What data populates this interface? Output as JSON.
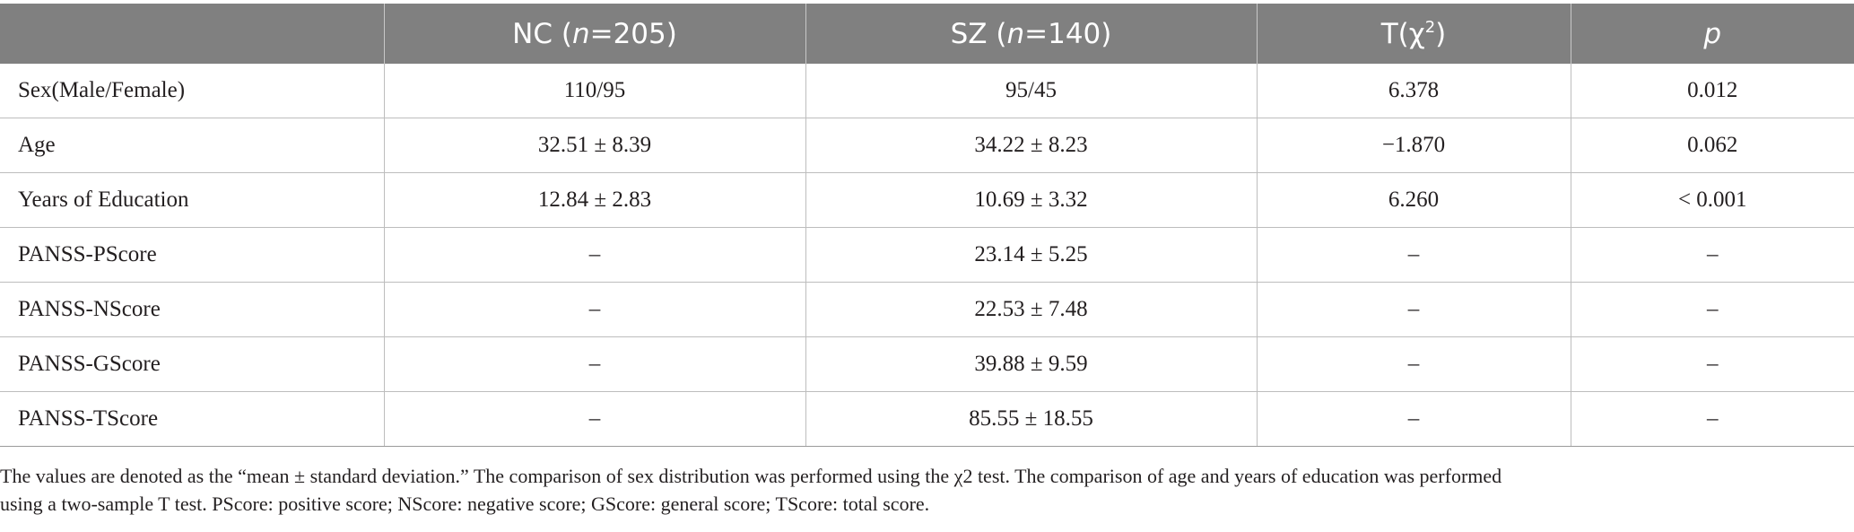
{
  "table": {
    "headers": {
      "col0": "",
      "nc_prefix": "NC (",
      "nc_n": "n",
      "nc_suffix": "=205)",
      "sz_prefix": "SZ (",
      "sz_n": "n",
      "sz_suffix": "=140)",
      "t_base": "T(χ",
      "t_sup": "2",
      "t_close": ")",
      "p": "p"
    },
    "rows": [
      {
        "label": "Sex(Male/Female)",
        "nc": "110/95",
        "sz": "95/45",
        "t": "6.378",
        "p": "0.012"
      },
      {
        "label": "Age",
        "nc": "32.51 ± 8.39",
        "sz": "34.22 ± 8.23",
        "t": "−1.870",
        "p": "0.062"
      },
      {
        "label": "Years of Education",
        "nc": "12.84 ± 2.83",
        "sz": "10.69 ± 3.32",
        "t": "6.260",
        "p": "< 0.001"
      },
      {
        "label": "PANSS-PScore",
        "nc": "–",
        "sz": "23.14 ± 5.25",
        "t": "–",
        "p": "–"
      },
      {
        "label": "PANSS-NScore",
        "nc": "–",
        "sz": "22.53 ± 7.48",
        "t": "–",
        "p": "–"
      },
      {
        "label": "PANSS-GScore",
        "nc": "–",
        "sz": "39.88 ± 9.59",
        "t": "–",
        "p": "–"
      },
      {
        "label": "PANSS-TScore",
        "nc": "–",
        "sz": "85.55 ± 18.55",
        "t": "–",
        "p": "–"
      }
    ]
  },
  "footnote": {
    "line1": "The values are denoted as the “mean ± standard deviation.” The comparison of sex distribution was performed using the χ2 test. The comparison of age and years of education was performed",
    "line2": "using a two-sample T test. PScore: positive score; NScore: negative score; GScore: general score; TScore: total score."
  }
}
